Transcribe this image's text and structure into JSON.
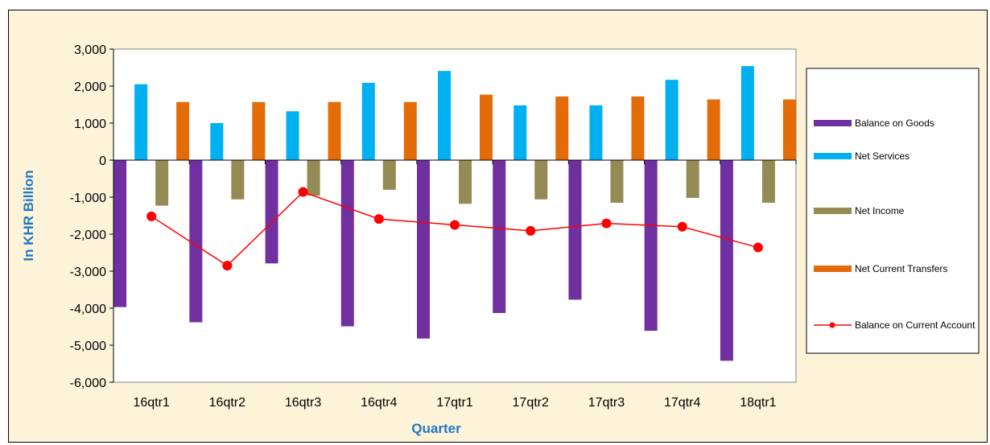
{
  "chart_data": {
    "type": "bar",
    "title": "",
    "xlabel": "Quarter",
    "ylabel": "In KHR Billion",
    "ylim": [
      -6000,
      3000
    ],
    "y_ticks": [
      3000,
      2000,
      1000,
      0,
      -1000,
      -2000,
      -3000,
      -4000,
      -5000,
      -6000
    ],
    "y_tick_labels": [
      "3,000",
      "2,000",
      "1,000",
      "0",
      "-1,000",
      "-2,000",
      "-3,000",
      "-4,000",
      "-5,000",
      "-6,000"
    ],
    "categories": [
      "16qtr1",
      "16qtr2",
      "16qtr3",
      "16qtr4",
      "17qtr1",
      "17qtr2",
      "17qtr3",
      "17qtr4",
      "18qtr1"
    ],
    "grid": false,
    "legend_position": "right",
    "axis_title_color": "#1f78c8",
    "series": [
      {
        "name": "Balance on Goods",
        "kind": "bar",
        "color": "#7030a0",
        "values": [
          -3970,
          -4380,
          -2790,
          -4490,
          -4820,
          -4130,
          -3770,
          -4610,
          -5420
        ]
      },
      {
        "name": "Net Services",
        "kind": "bar",
        "color": "#00b0f0",
        "values": [
          2050,
          1000,
          1320,
          2090,
          2410,
          1480,
          1480,
          2170,
          2540
        ]
      },
      {
        "name": "Net Income",
        "kind": "bar",
        "color": "#948a54",
        "values": [
          -1230,
          -1060,
          -960,
          -800,
          -1180,
          -1060,
          -1150,
          -1020,
          -1150
        ]
      },
      {
        "name": "Net Current Transfers",
        "kind": "bar",
        "color": "#e36c09",
        "values": [
          1570,
          1570,
          1570,
          1570,
          1770,
          1720,
          1720,
          1640,
          1640
        ]
      },
      {
        "name": "Balance on Current Account",
        "kind": "line",
        "color": "#ff0000",
        "values": [
          -1520,
          -2850,
          -860,
          -1590,
          -1750,
          -1910,
          -1710,
          -1800,
          -2360
        ]
      }
    ]
  }
}
